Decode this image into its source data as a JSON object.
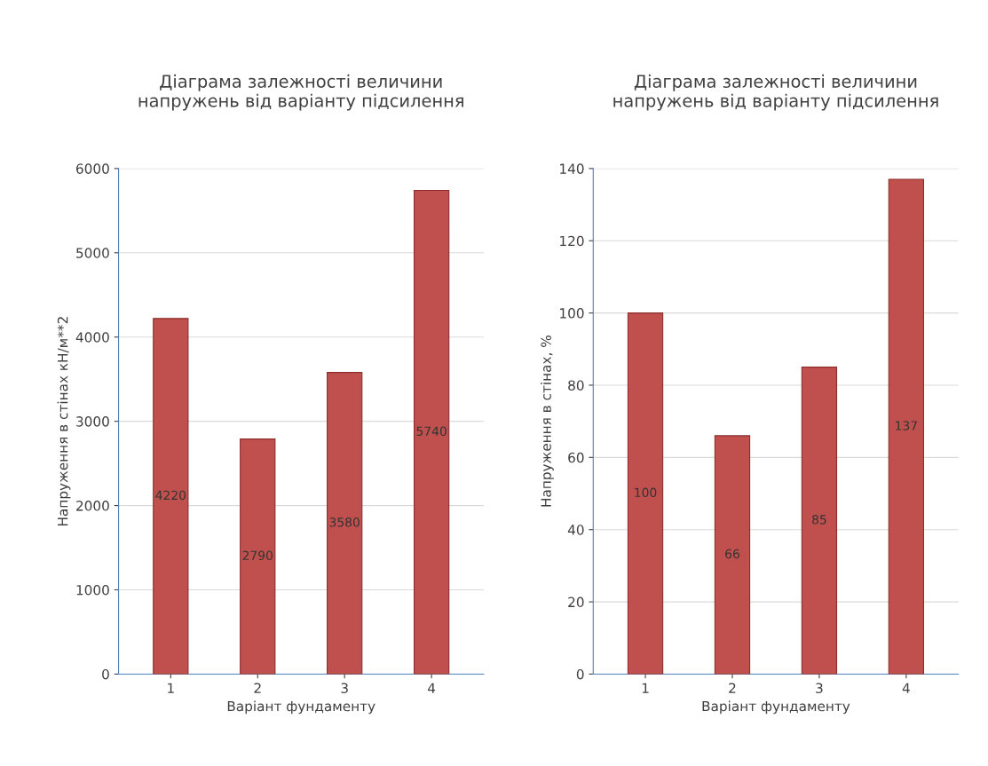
{
  "chart_data": [
    {
      "type": "bar",
      "title": "Діаграма залежності величини\nнапружень від варіанту підсилення",
      "xlabel": "Варіант фундаменту",
      "ylabel": "Напруження в стінах кН/м**2",
      "categories": [
        "1",
        "2",
        "3",
        "4"
      ],
      "values": [
        4220,
        2790,
        3580,
        5740
      ],
      "color": "#c0504d",
      "ylim": [
        0,
        6000
      ],
      "yticks": [
        0,
        1000,
        2000,
        3000,
        4000,
        5000,
        6000
      ],
      "grid": "y",
      "data_labels": true
    },
    {
      "type": "bar",
      "title": "Діаграма залежності величини\nнапружень від варіанту підсилення",
      "xlabel": "Варіант фундаменту",
      "ylabel": "Напруження в стінах, %",
      "categories": [
        "1",
        "2",
        "3",
        "4"
      ],
      "values": [
        100,
        66,
        85,
        137
      ],
      "color": "#c0504d",
      "ylim": [
        0,
        140
      ],
      "yticks": [
        0,
        20,
        40,
        60,
        80,
        100,
        120,
        140
      ],
      "grid": "y",
      "data_labels": true
    }
  ]
}
